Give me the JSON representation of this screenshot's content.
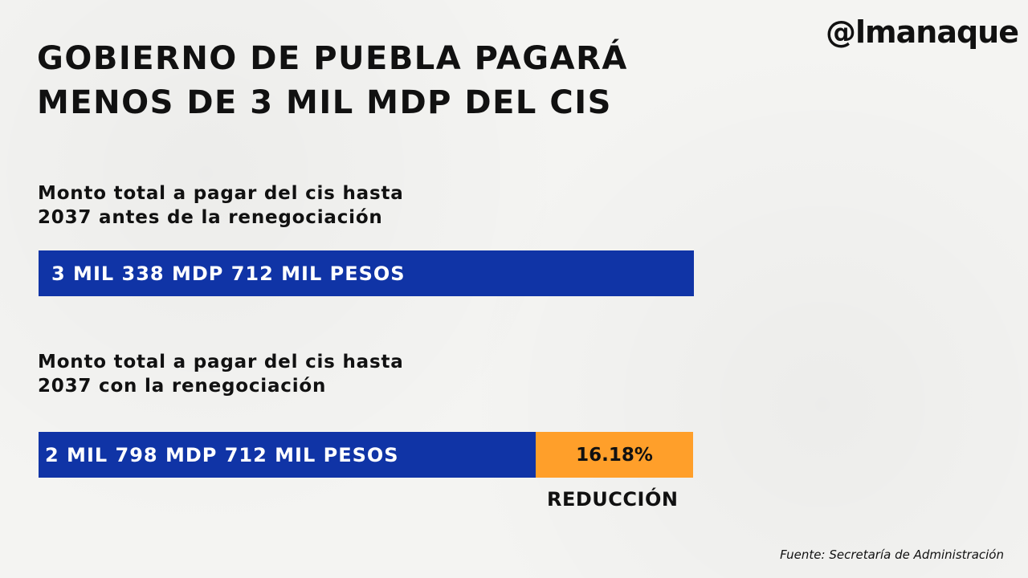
{
  "title_lines": [
    "GOBIERNO DE PUEBLA PAGARÁ",
    "MENOS DE 3 MIL MDP DEL CIS"
  ],
  "logo": "@lmanaque",
  "colors": {
    "bar_blue": "#1034a6",
    "bar_orange": "#ff9f2a"
  },
  "chart_data": {
    "type": "bar",
    "orientation": "horizontal",
    "unit": "MDP",
    "bars": [
      {
        "label_lines": [
          "Monto total a pagar del cis hasta",
          "2037 antes de la renegociación"
        ],
        "value": 3338.712,
        "value_label": "3 MIL 338 MDP 712 MIL PESOS"
      },
      {
        "label_lines": [
          "Monto total a pagar del cis hasta",
          "2037 con la renegociación"
        ],
        "value": 2798.712,
        "value_label": "2 MIL 798 MDP 712 MIL PESOS"
      }
    ],
    "reduction": {
      "value": 16.18,
      "label": "16.18%",
      "caption": "REDUCCIÓN"
    }
  },
  "source": "Fuente:  Secretaría de Administración"
}
